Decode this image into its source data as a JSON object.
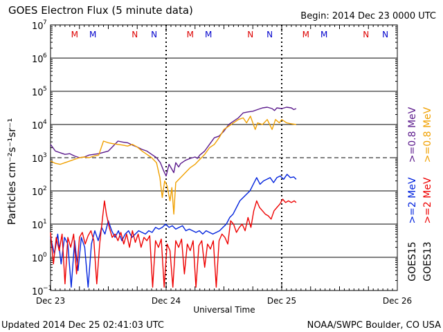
{
  "header": {
    "title": "GOES Electron Flux (5 minute data)",
    "begin": "Begin: 2014 Dec 23 0000 UTC"
  },
  "footer": {
    "updated": "Updated 2014 Dec 25 02:41:03 UTC",
    "credit": "NOAA/SWPC Boulder, CO USA"
  },
  "chart_data": {
    "type": "line",
    "title": "GOES Electron Flux (5 minute data)",
    "xlabel": "Universal Time",
    "ylabel": "Particles cm⁻²s⁻¹sr⁻¹",
    "yscale": "log",
    "ylim_exp": [
      -1,
      7
    ],
    "y_ticks": [
      {
        "base": "10",
        "exp": "−1",
        "v": -1
      },
      {
        "base": "10",
        "exp": "0",
        "v": 0
      },
      {
        "base": "10",
        "exp": "1",
        "v": 1
      },
      {
        "base": "10",
        "exp": "2",
        "v": 2
      },
      {
        "base": "10",
        "exp": "3",
        "v": 3
      },
      {
        "base": "10",
        "exp": "4",
        "v": 4
      },
      {
        "base": "10",
        "exp": "5",
        "v": 5
      },
      {
        "base": "10",
        "exp": "6",
        "v": 6
      },
      {
        "base": "10",
        "exp": "7",
        "v": 7
      }
    ],
    "xlim_hours": [
      0,
      72
    ],
    "x_ticks": [
      {
        "label": "Dec 23",
        "h": 0
      },
      {
        "label": "Dec 24",
        "h": 24
      },
      {
        "label": "Dec 25",
        "h": 48
      },
      {
        "label": "Dec 26",
        "h": 72
      }
    ],
    "day_markers_hours": [
      24,
      48
    ],
    "threshold_exp": 3,
    "mn_markers": [
      {
        "letter": "M",
        "h": 5.0,
        "color": "#dd0000"
      },
      {
        "letter": "M",
        "h": 8.8,
        "color": "#0000cc"
      },
      {
        "letter": "N",
        "h": 17.5,
        "color": "#dd0000"
      },
      {
        "letter": "N",
        "h": 21.5,
        "color": "#0000cc"
      },
      {
        "letter": "M",
        "h": 29.0,
        "color": "#dd0000"
      },
      {
        "letter": "M",
        "h": 32.8,
        "color": "#0000cc"
      },
      {
        "letter": "N",
        "h": 41.5,
        "color": "#dd0000"
      },
      {
        "letter": "N",
        "h": 45.5,
        "color": "#0000cc"
      },
      {
        "letter": "M",
        "h": 53.0,
        "color": "#dd0000"
      },
      {
        "letter": "M",
        "h": 56.8,
        "color": "#0000cc"
      },
      {
        "letter": "N",
        "h": 65.5,
        "color": "#dd0000"
      },
      {
        "letter": "N",
        "h": 69.5,
        "color": "#0000cc"
      }
    ],
    "legend": [
      {
        "text": ">=0.8 MeV",
        "color": "#5b1a8c"
      },
      {
        "text": ">=0.8 MeV",
        "color": "#f0a000"
      },
      {
        "text": ">=2 MeV",
        "color": "#0022dd"
      },
      {
        "text": ">=2 MeV",
        "color": "#ee0000"
      },
      {
        "text": "GOES15",
        "color": "#000000"
      },
      {
        "text": "GOES13",
        "color": "#000000"
      }
    ],
    "series": [
      {
        "name": "GOES15 >=0.8 MeV",
        "color": "#5b1a8c",
        "points": [
          [
            0,
            3.4
          ],
          [
            1,
            3.2
          ],
          [
            2,
            3.15
          ],
          [
            3,
            3.1
          ],
          [
            4,
            3.12
          ],
          [
            5,
            3.05
          ],
          [
            6,
            3.0
          ],
          [
            7,
            3.02
          ],
          [
            8,
            3.08
          ],
          [
            9,
            3.1
          ],
          [
            10,
            3.12
          ],
          [
            11,
            3.16
          ],
          [
            12,
            3.2
          ],
          [
            13,
            3.35
          ],
          [
            14,
            3.5
          ],
          [
            15,
            3.47
          ],
          [
            16,
            3.45
          ],
          [
            17,
            3.38
          ],
          [
            18,
            3.32
          ],
          [
            19,
            3.25
          ],
          [
            20,
            3.2
          ],
          [
            21,
            3.1
          ],
          [
            22,
            3.0
          ],
          [
            22.8,
            2.85
          ],
          [
            23.5,
            2.6
          ],
          [
            24,
            2.45
          ],
          [
            24.6,
            2.8
          ],
          [
            25,
            2.7
          ],
          [
            25.6,
            2.55
          ],
          [
            26,
            2.85
          ],
          [
            26.6,
            2.72
          ],
          [
            27,
            2.82
          ],
          [
            28,
            2.92
          ],
          [
            29,
            2.98
          ],
          [
            30,
            3.02
          ],
          [
            30.5,
            2.98
          ],
          [
            31,
            3.08
          ],
          [
            32,
            3.2
          ],
          [
            33,
            3.4
          ],
          [
            34,
            3.6
          ],
          [
            35,
            3.65
          ],
          [
            36,
            3.8
          ],
          [
            37,
            4.0
          ],
          [
            38,
            4.1
          ],
          [
            39,
            4.2
          ],
          [
            40,
            4.35
          ],
          [
            41,
            4.38
          ],
          [
            42,
            4.4
          ],
          [
            43,
            4.45
          ],
          [
            44,
            4.5
          ],
          [
            45,
            4.52
          ],
          [
            46,
            4.48
          ],
          [
            46.5,
            4.42
          ],
          [
            47,
            4.5
          ],
          [
            48,
            4.48
          ],
          [
            49,
            4.52
          ],
          [
            50,
            4.5
          ],
          [
            50.5,
            4.45
          ],
          [
            51,
            4.48
          ]
        ]
      },
      {
        "name": "GOES13 >=0.8 MeV",
        "color": "#f0a000",
        "points": [
          [
            0,
            2.9
          ],
          [
            1,
            2.83
          ],
          [
            2,
            2.8
          ],
          [
            3,
            2.85
          ],
          [
            4,
            2.9
          ],
          [
            5,
            2.95
          ],
          [
            6,
            3.0
          ],
          [
            7,
            3.02
          ],
          [
            8,
            3.0
          ],
          [
            9,
            3.05
          ],
          [
            10,
            3.08
          ],
          [
            11,
            3.5
          ],
          [
            12,
            3.45
          ],
          [
            13,
            3.42
          ],
          [
            14,
            3.4
          ],
          [
            15,
            3.38
          ],
          [
            16,
            3.35
          ],
          [
            17,
            3.4
          ],
          [
            18,
            3.32
          ],
          [
            19,
            3.2
          ],
          [
            20,
            3.1
          ],
          [
            21,
            3.0
          ],
          [
            22,
            2.85
          ],
          [
            22.7,
            2.4
          ],
          [
            23.2,
            1.8
          ],
          [
            23.7,
            2.3
          ],
          [
            24.2,
            2.15
          ],
          [
            24.8,
            1.7
          ],
          [
            25.2,
            2.1
          ],
          [
            25.6,
            1.3
          ],
          [
            26,
            2.25
          ],
          [
            27,
            2.4
          ],
          [
            28,
            2.55
          ],
          [
            29,
            2.7
          ],
          [
            30,
            2.8
          ],
          [
            31,
            2.95
          ],
          [
            32,
            3.1
          ],
          [
            33,
            3.3
          ],
          [
            34,
            3.4
          ],
          [
            35,
            3.6
          ],
          [
            36,
            3.85
          ],
          [
            37,
            3.95
          ],
          [
            38,
            4.05
          ],
          [
            39,
            4.15
          ],
          [
            40,
            4.2
          ],
          [
            40.7,
            4.05
          ],
          [
            41.5,
            4.25
          ],
          [
            42.5,
            3.85
          ],
          [
            43,
            4.05
          ],
          [
            44,
            4.0
          ],
          [
            45,
            4.15
          ],
          [
            46,
            3.85
          ],
          [
            46.7,
            4.15
          ],
          [
            47.5,
            4.05
          ],
          [
            48,
            4.15
          ],
          [
            49,
            4.05
          ],
          [
            50,
            4.02
          ],
          [
            51,
            4.0
          ]
        ]
      },
      {
        "name": "GOES15 >=2 MeV",
        "color": "#0022dd",
        "points": [
          [
            0,
            0.6
          ],
          [
            0.8,
            0.1
          ],
          [
            1.5,
            0.7
          ],
          [
            2.2,
            -0.2
          ],
          [
            2.9,
            0.6
          ],
          [
            3.6,
            0.4
          ],
          [
            4.3,
            -0.9
          ],
          [
            5,
            0.5
          ],
          [
            5.7,
            -0.4
          ],
          [
            6.4,
            0.6
          ],
          [
            7.1,
            0.3
          ],
          [
            7.8,
            -0.9
          ],
          [
            8.5,
            0.4
          ],
          [
            9.2,
            0.8
          ],
          [
            9.9,
            0.5
          ],
          [
            10.6,
            0.9
          ],
          [
            11.3,
            0.7
          ],
          [
            12,
            1.1
          ],
          [
            12.7,
            0.8
          ],
          [
            13.4,
            0.6
          ],
          [
            14.1,
            0.8
          ],
          [
            14.8,
            0.5
          ],
          [
            15.5,
            0.7
          ],
          [
            16.2,
            0.8
          ],
          [
            16.9,
            0.6
          ],
          [
            17.6,
            0.7
          ],
          [
            18.3,
            0.8
          ],
          [
            19,
            0.75
          ],
          [
            19.7,
            0.7
          ],
          [
            20.4,
            0.8
          ],
          [
            21.1,
            0.75
          ],
          [
            21.8,
            0.9
          ],
          [
            22.5,
            0.85
          ],
          [
            23.2,
            0.9
          ],
          [
            23.9,
            1.0
          ],
          [
            24.6,
            0.9
          ],
          [
            25.3,
            0.95
          ],
          [
            26,
            0.85
          ],
          [
            26.7,
            0.9
          ],
          [
            27.4,
            0.95
          ],
          [
            28.1,
            0.8
          ],
          [
            28.8,
            0.85
          ],
          [
            29.5,
            0.8
          ],
          [
            30.2,
            0.75
          ],
          [
            30.9,
            0.8
          ],
          [
            31.6,
            0.7
          ],
          [
            32.3,
            0.8
          ],
          [
            33,
            0.75
          ],
          [
            33.7,
            0.7
          ],
          [
            34.4,
            0.75
          ],
          [
            35.1,
            0.8
          ],
          [
            35.8,
            0.9
          ],
          [
            36.5,
            1.0
          ],
          [
            37.2,
            1.2
          ],
          [
            37.9,
            1.3
          ],
          [
            38.6,
            1.5
          ],
          [
            39.3,
            1.7
          ],
          [
            40,
            1.8
          ],
          [
            40.7,
            1.9
          ],
          [
            41.4,
            2.0
          ],
          [
            42.1,
            2.2
          ],
          [
            42.8,
            2.4
          ],
          [
            43.5,
            2.2
          ],
          [
            44.2,
            2.3
          ],
          [
            44.9,
            2.35
          ],
          [
            45.6,
            2.4
          ],
          [
            46.3,
            2.25
          ],
          [
            47,
            2.4
          ],
          [
            47.7,
            2.45
          ],
          [
            48.4,
            2.35
          ],
          [
            49.1,
            2.5
          ],
          [
            49.8,
            2.4
          ],
          [
            50.5,
            2.42
          ],
          [
            51,
            2.35
          ]
        ]
      },
      {
        "name": "GOES13 >=2 MeV",
        "color": "#ee0000",
        "points": [
          [
            0,
            0.75
          ],
          [
            0.6,
            -0.2
          ],
          [
            1.2,
            0.6
          ],
          [
            1.8,
            0.2
          ],
          [
            2.4,
            0.7
          ],
          [
            3,
            -0.8
          ],
          [
            3.6,
            0.6
          ],
          [
            4.2,
            0.3
          ],
          [
            4.8,
            0.7
          ],
          [
            5.4,
            -0.5
          ],
          [
            6,
            0.6
          ],
          [
            6.6,
            0.75
          ],
          [
            7.2,
            0.4
          ],
          [
            7.8,
            0.65
          ],
          [
            8.4,
            0.8
          ],
          [
            9,
            0.5
          ],
          [
            9.6,
            -0.8
          ],
          [
            10.2,
            0.4
          ],
          [
            10.8,
            1.2
          ],
          [
            11.2,
            1.7
          ],
          [
            11.6,
            1.3
          ],
          [
            12.2,
            0.9
          ],
          [
            12.8,
            0.6
          ],
          [
            13.4,
            0.7
          ],
          [
            14,
            0.5
          ],
          [
            14.6,
            0.75
          ],
          [
            15.2,
            0.4
          ],
          [
            15.8,
            0.7
          ],
          [
            16.4,
            0.3
          ],
          [
            17,
            0.8
          ],
          [
            17.6,
            0.45
          ],
          [
            18.2,
            0.7
          ],
          [
            18.8,
            0.3
          ],
          [
            19.4,
            0.6
          ],
          [
            20,
            0.5
          ],
          [
            20.6,
            0.65
          ],
          [
            21.2,
            -0.9
          ],
          [
            21.8,
            0.5
          ],
          [
            22.4,
            0.3
          ],
          [
            23,
            0.55
          ],
          [
            23.6,
            -0.9
          ],
          [
            24.2,
            0.4
          ],
          [
            24.8,
            0.2
          ],
          [
            25.4,
            -0.9
          ],
          [
            26,
            0.5
          ],
          [
            26.6,
            0.3
          ],
          [
            27.2,
            0.55
          ],
          [
            27.8,
            -0.5
          ],
          [
            28.4,
            0.4
          ],
          [
            29,
            0.2
          ],
          [
            29.6,
            0.5
          ],
          [
            30.2,
            -0.9
          ],
          [
            30.8,
            0.35
          ],
          [
            31.4,
            0.5
          ],
          [
            32,
            -0.3
          ],
          [
            32.6,
            0.4
          ],
          [
            33.2,
            0.25
          ],
          [
            33.8,
            0.5
          ],
          [
            34.4,
            -0.9
          ],
          [
            35,
            0.5
          ],
          [
            35.6,
            0.7
          ],
          [
            36.2,
            0.6
          ],
          [
            36.8,
            0.4
          ],
          [
            37.4,
            1.1
          ],
          [
            38,
            1.0
          ],
          [
            38.6,
            0.75
          ],
          [
            39.2,
            0.9
          ],
          [
            39.8,
            1.0
          ],
          [
            40.4,
            0.8
          ],
          [
            41,
            1.2
          ],
          [
            41.6,
            0.9
          ],
          [
            42.2,
            1.4
          ],
          [
            42.8,
            1.7
          ],
          [
            43.4,
            1.5
          ],
          [
            44,
            1.4
          ],
          [
            44.6,
            1.3
          ],
          [
            45.2,
            1.25
          ],
          [
            45.8,
            1.15
          ],
          [
            46.4,
            1.4
          ],
          [
            47,
            1.5
          ],
          [
            47.6,
            1.6
          ],
          [
            48.2,
            1.75
          ],
          [
            48.8,
            1.65
          ],
          [
            49.4,
            1.7
          ],
          [
            50,
            1.65
          ],
          [
            50.6,
            1.7
          ],
          [
            51,
            1.65
          ]
        ]
      }
    ]
  }
}
